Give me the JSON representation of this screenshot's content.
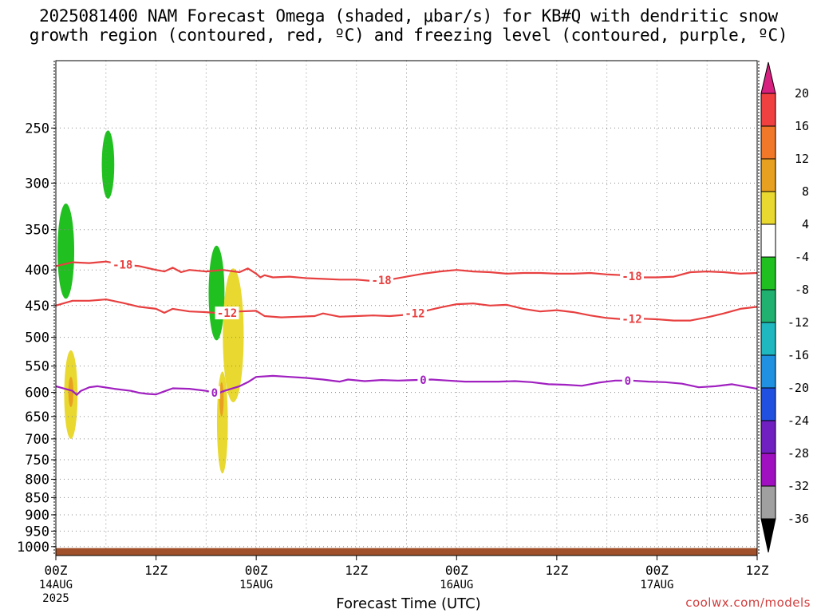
{
  "title_line1": "2025081400 NAM Forecast Omega (shaded, μbar/s) for KB#Q with dendritic snow",
  "title_line2": "growth region (contoured, red, ºC) and freezing level (contoured, purple, ºC)",
  "credit": "coolwx.com/models",
  "chart_data": {
    "type": "contour",
    "title": "2025081400 NAM Forecast Omega (shaded, μbar/s) for KB#Q with dendritic snow growth region (contoured, red, ºC) and freezing level (contoured, purple, ºC)",
    "xlabel": "Forecast Time (UTC)",
    "ylabel": "",
    "x_unit": "forecast hour",
    "xlim": [
      0,
      84
    ],
    "y_unit": "hPa",
    "ylim": [
      1030,
      200
    ],
    "y_scale": "log",
    "yticks": [
      250,
      300,
      350,
      400,
      450,
      500,
      550,
      600,
      650,
      700,
      750,
      800,
      850,
      900,
      950,
      1000
    ],
    "xticks": [
      {
        "hour": 0,
        "label": "00Z",
        "date": "14AUG",
        "year": "2025"
      },
      {
        "hour": 12,
        "label": "12Z"
      },
      {
        "hour": 24,
        "label": "00Z",
        "date": "15AUG"
      },
      {
        "hour": 36,
        "label": "12Z"
      },
      {
        "hour": 48,
        "label": "00Z",
        "date": "16AUG"
      },
      {
        "hour": 60,
        "label": "12Z"
      },
      {
        "hour": 72,
        "label": "00Z",
        "date": "17AUG"
      },
      {
        "hour": 84,
        "label": "12Z"
      }
    ],
    "grid": true,
    "colorbar": {
      "position": "right",
      "labels": [
        "20",
        "16",
        "12",
        "8",
        "4",
        "-4",
        "-8",
        "-12",
        "-16",
        "-20",
        "-24",
        "-28",
        "-32",
        "-36"
      ],
      "colors": [
        "#d82080",
        "#f04040",
        "#f07828",
        "#e8a020",
        "#e8d830",
        "#ffffff",
        "#20c020",
        "#20b070",
        "#20b8c0",
        "#2090e0",
        "#2050e0",
        "#7020c0",
        "#a010c0",
        "#a0a0a0",
        "#000000"
      ]
    },
    "contours": [
      {
        "name": "-18",
        "color": "#e84040",
        "label_hours": [
          8,
          39,
          69
        ],
        "points": [
          [
            0,
            395
          ],
          [
            2,
            390
          ],
          [
            4,
            391
          ],
          [
            6,
            389
          ],
          [
            8,
            393
          ],
          [
            10,
            395
          ],
          [
            12,
            400
          ],
          [
            13,
            402
          ],
          [
            14,
            397
          ],
          [
            15,
            403
          ],
          [
            16,
            400
          ],
          [
            18,
            402
          ],
          [
            20,
            400
          ],
          [
            22,
            403
          ],
          [
            23,
            398
          ],
          [
            24,
            405
          ],
          [
            24.5,
            410
          ],
          [
            25,
            407
          ],
          [
            26,
            410
          ],
          [
            28,
            409
          ],
          [
            30,
            411
          ],
          [
            32,
            412
          ],
          [
            34,
            413
          ],
          [
            36,
            413
          ],
          [
            38,
            415
          ],
          [
            40,
            413
          ],
          [
            42,
            409
          ],
          [
            44,
            405
          ],
          [
            46,
            402
          ],
          [
            48,
            400
          ],
          [
            50,
            402
          ],
          [
            52,
            403
          ],
          [
            54,
            405
          ],
          [
            56,
            404
          ],
          [
            58,
            404
          ],
          [
            60,
            405
          ],
          [
            62,
            405
          ],
          [
            64,
            404
          ],
          [
            66,
            406
          ],
          [
            68,
            407
          ],
          [
            70,
            410
          ],
          [
            72,
            410
          ],
          [
            74,
            409
          ],
          [
            76,
            403
          ],
          [
            78,
            402
          ],
          [
            80,
            403
          ],
          [
            82,
            405
          ],
          [
            84,
            404
          ]
        ]
      },
      {
        "name": "-12",
        "color": "#e84040",
        "label_hours": [
          20.5,
          43,
          69
        ],
        "points": [
          [
            0,
            450
          ],
          [
            2,
            443
          ],
          [
            4,
            443
          ],
          [
            6,
            441
          ],
          [
            8,
            446
          ],
          [
            10,
            452
          ],
          [
            12,
            455
          ],
          [
            13,
            461
          ],
          [
            14,
            455
          ],
          [
            16,
            459
          ],
          [
            18,
            460
          ],
          [
            20,
            462
          ],
          [
            22,
            459
          ],
          [
            24,
            458
          ],
          [
            25,
            466
          ],
          [
            27,
            468
          ],
          [
            29,
            467
          ],
          [
            31,
            466
          ],
          [
            32,
            462
          ],
          [
            34,
            467
          ],
          [
            36,
            466
          ],
          [
            38,
            465
          ],
          [
            40,
            466
          ],
          [
            42,
            464
          ],
          [
            44,
            459
          ],
          [
            46,
            453
          ],
          [
            48,
            448
          ],
          [
            50,
            447
          ],
          [
            52,
            450
          ],
          [
            54,
            449
          ],
          [
            56,
            455
          ],
          [
            58,
            459
          ],
          [
            60,
            457
          ],
          [
            62,
            460
          ],
          [
            64,
            465
          ],
          [
            66,
            469
          ],
          [
            68,
            471
          ],
          [
            70,
            470
          ],
          [
            72,
            471
          ],
          [
            74,
            473
          ],
          [
            76,
            473
          ],
          [
            78,
            468
          ],
          [
            80,
            462
          ],
          [
            82,
            455
          ],
          [
            84,
            452
          ]
        ]
      },
      {
        "name": "0",
        "color": "#a020c0",
        "label_hours": [
          19,
          44,
          68.5
        ],
        "points": [
          [
            0,
            588
          ],
          [
            2,
            597
          ],
          [
            2.5,
            605
          ],
          [
            3,
            597
          ],
          [
            4,
            590
          ],
          [
            5,
            588
          ],
          [
            7,
            593
          ],
          [
            9,
            597
          ],
          [
            10,
            601
          ],
          [
            11,
            603
          ],
          [
            12,
            604
          ],
          [
            13,
            598
          ],
          [
            14,
            592
          ],
          [
            16,
            593
          ],
          [
            18,
            597
          ],
          [
            19.5,
            602
          ],
          [
            20,
            598
          ],
          [
            21,
            593
          ],
          [
            22,
            588
          ],
          [
            23,
            580
          ],
          [
            24,
            570
          ],
          [
            26,
            568
          ],
          [
            28,
            570
          ],
          [
            30,
            572
          ],
          [
            32,
            575
          ],
          [
            34,
            579
          ],
          [
            35,
            575
          ],
          [
            37,
            578
          ],
          [
            39,
            576
          ],
          [
            41,
            577
          ],
          [
            43,
            576
          ],
          [
            45,
            575
          ],
          [
            47,
            577
          ],
          [
            49,
            579
          ],
          [
            51,
            579
          ],
          [
            53,
            579
          ],
          [
            55,
            578
          ],
          [
            57,
            580
          ],
          [
            59,
            584
          ],
          [
            61,
            585
          ],
          [
            63,
            587
          ],
          [
            65,
            581
          ],
          [
            67,
            577
          ],
          [
            69,
            577
          ],
          [
            71,
            579
          ],
          [
            73,
            580
          ],
          [
            75,
            583
          ],
          [
            77,
            590
          ],
          [
            79,
            588
          ],
          [
            81,
            584
          ],
          [
            84,
            593
          ]
        ]
      }
    ],
    "shaded_regions": [
      {
        "value_range": "-8 to -4",
        "color": "#20c020",
        "hour_range": [
          5.5,
          7
        ],
        "pressure_range": [
          252,
          316
        ]
      },
      {
        "value_range": "-8 to -4",
        "color": "#20c020",
        "hour_range": [
          0.2,
          2.2
        ],
        "pressure_range": [
          321,
          440
        ]
      },
      {
        "value_range": "-8 to -4",
        "color": "#20c020",
        "hour_range": [
          18.3,
          20.2
        ],
        "pressure_range": [
          369,
          505
        ]
      },
      {
        "value_range": "4 to 8",
        "color": "#e8d830",
        "hour_range": [
          1,
          2.6
        ],
        "pressure_range": [
          522,
          700
        ]
      },
      {
        "value_range": "8 to 12",
        "color": "#e8a020",
        "hour_range": [
          1.5,
          2.1
        ],
        "pressure_range": [
          570,
          630
        ]
      },
      {
        "value_range": "4 to 8",
        "color": "#e8d830",
        "hour_range": [
          19.3,
          20.6
        ],
        "pressure_range": [
          560,
          785
        ]
      },
      {
        "value_range": "4 to 8",
        "color": "#e8d830",
        "hour_range": [
          20,
          22.5
        ],
        "pressure_range": [
          398,
          620
        ]
      },
      {
        "value_range": "8 to 12",
        "color": "#e8a020",
        "hour_range": [
          19.6,
          20.1
        ],
        "pressure_range": [
          580,
          650
        ]
      }
    ],
    "terrain": {
      "color": "#a0502a",
      "pressure_top": 1005
    }
  }
}
